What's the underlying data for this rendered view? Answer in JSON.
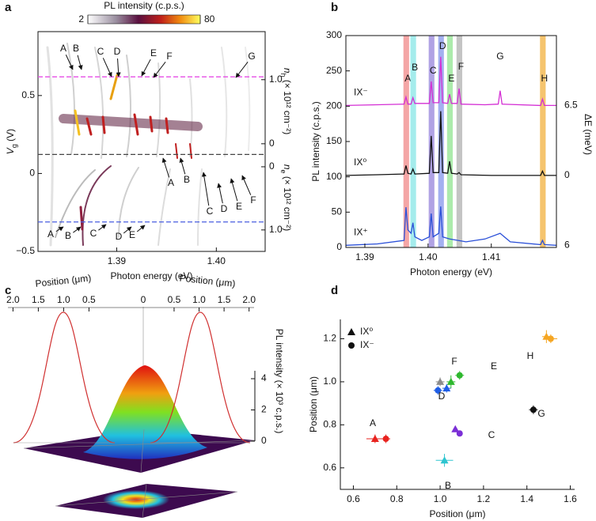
{
  "chart_data": [
    {
      "type": "heatmap",
      "label": "a",
      "colorbar": {
        "title": "PL intensity (c.p.s.)",
        "lim": [
          2,
          80
        ],
        "ticks": [
          2,
          80
        ]
      },
      "xlabel": "Photon energy (eV)",
      "xlim": [
        1.3821,
        1.4049
      ],
      "xticks": [
        1.39,
        {
          "value": 1.4,
          "label": "1.40"
        }
      ],
      "ylabel": [
        "V",
        "g",
        " (V)"
      ],
      "ylim": [
        -0.5,
        0.91
      ],
      "yticks": [
        {
          "value": -0.5,
          "label": "−0.5"
        },
        0,
        0.5
      ],
      "y2label": [
        "n",
        "h",
        " (× 10¹² cm⁻²)"
      ],
      "y2lim": [
        -1.68,
        1.75
      ],
      "y2ticks": [
        {
          "value": 1,
          "label": "1.0"
        },
        0
      ],
      "y3label": [
        "n",
        "e",
        " (× 10¹² cm⁻²)"
      ],
      "y3lim": [
        1.34,
        -2.14
      ],
      "y3ticks": [
        0,
        {
          "value": 1,
          "label": "1.0"
        }
      ],
      "hlines": [
        {
          "y": 0.62,
          "color": "#e64ce6"
        },
        {
          "y": 0.122,
          "color": "#444444"
        },
        {
          "y": -0.311,
          "color": "#4a5fe0"
        }
      ],
      "annotations": [
        "A",
        "B",
        "C",
        "D",
        "E",
        "F",
        "G",
        "A",
        "B",
        "C",
        "D",
        "E",
        "F",
        "A",
        "B",
        "C",
        "D",
        "E"
      ]
    },
    {
      "type": "line",
      "label": "b",
      "xlabel": "Photon energy (eV)",
      "ylabel": "PL intensity (c.p.s.)",
      "y2label": "ΔE (meV)",
      "xlim": [
        1.387,
        1.4203
      ],
      "xticks": [
        1.39,
        {
          "value": 1.4,
          "label": "1.40"
        },
        1.41
      ],
      "ylim": [
        0,
        300
      ],
      "yticks": [
        0,
        50,
        100,
        150,
        200,
        250,
        300
      ],
      "bands": [
        {
          "name": "A",
          "span": [
            1.3961,
            1.397
          ],
          "color": "#f4a6a6"
        },
        {
          "name": "B",
          "span": [
            1.3972,
            1.3981
          ],
          "color": "#a4ecec"
        },
        {
          "name": "C",
          "span": [
            1.4001,
            1.401
          ],
          "color": "#b0a2e4"
        },
        {
          "name": "D",
          "span": [
            1.4016,
            1.4025
          ],
          "color": "#a3b0f0"
        },
        {
          "name": "E",
          "span": [
            1.403,
            1.4039
          ],
          "color": "#acebac"
        },
        {
          "name": "F",
          "span": [
            1.4045,
            1.4054
          ],
          "color": "#c4c4c4"
        },
        {
          "name": "H",
          "span": [
            1.4177,
            1.4186
          ],
          "color": "#f5c46e"
        }
      ],
      "labels": [
        {
          "text": "G",
          "x": 1.4114
        }
      ],
      "series": [
        {
          "name": "IX⁻",
          "color": "#d42ed4",
          "delta_E": 6.5,
          "delta_color": "#111111",
          "x": [
            1.387,
            1.392,
            1.3962,
            1.3965,
            1.3968,
            1.3973,
            1.3976,
            1.3979,
            1.4002,
            1.4005,
            1.4008,
            1.4017,
            1.402,
            1.4023,
            1.4031,
            1.4034,
            1.4037,
            1.4046,
            1.4049,
            1.4052,
            1.409,
            1.4111,
            1.4114,
            1.4117,
            1.4178,
            1.4181,
            1.4184,
            1.4203
          ],
          "values": [
            201,
            202,
            203,
            213,
            203,
            203,
            212,
            204,
            204,
            235,
            205,
            205,
            270,
            205,
            204,
            217,
            204,
            204,
            225,
            203,
            202,
            203,
            222,
            203,
            201,
            210,
            201,
            201
          ]
        },
        {
          "name": "IX⁰",
          "color": "#111111",
          "delta_E": 0,
          "delta_color": "#111111",
          "x": [
            1.387,
            1.392,
            1.3962,
            1.3965,
            1.3968,
            1.3973,
            1.3976,
            1.3979,
            1.4002,
            1.4005,
            1.4008,
            1.4017,
            1.402,
            1.4023,
            1.4031,
            1.4034,
            1.4037,
            1.4046,
            1.4049,
            1.4052,
            1.41,
            1.4178,
            1.4181,
            1.4184,
            1.4203
          ],
          "values": [
            102,
            103,
            104,
            116,
            105,
            104,
            111,
            104,
            105,
            158,
            106,
            106,
            193,
            106,
            105,
            122,
            105,
            104,
            106,
            103,
            102,
            102,
            108,
            102,
            102
          ]
        },
        {
          "name": "IX⁺",
          "color": "#2a4fd8",
          "delta_E": 6,
          "delta_color": "#2a4fd8",
          "x": [
            1.387,
            1.392,
            1.3962,
            1.3965,
            1.3968,
            1.3973,
            1.3976,
            1.3979,
            1.399,
            1.4002,
            1.4005,
            1.4008,
            1.4017,
            1.402,
            1.4023,
            1.4034,
            1.406,
            1.409,
            1.4114,
            1.413,
            1.4178,
            1.4181,
            1.4184,
            1.4203
          ],
          "values": [
            3,
            5,
            10,
            57,
            25,
            20,
            35,
            15,
            10,
            15,
            48,
            15,
            20,
            58,
            15,
            12,
            8,
            12,
            20,
            8,
            4,
            10,
            4,
            3
          ]
        }
      ]
    },
    {
      "type": "surface3d",
      "label": "c",
      "xlabel_left": "Position (μm)",
      "xlabel_right": "Position (μm)",
      "xlim_left": [
        2.1,
        0.2
      ],
      "xticks_left": [
        {
          "value": 2,
          "label": "2.0"
        },
        1.5,
        {
          "value": 1,
          "label": "1.0"
        },
        0.5
      ],
      "origin_tick": 0,
      "xlim_right": [
        0.2,
        2.1
      ],
      "xticks_right": [
        0.5,
        {
          "value": 1,
          "label": "1.0"
        },
        1.5,
        {
          "value": 2,
          "label": "2.0"
        }
      ],
      "zlabel": "PL intensity (× 10³ c.p.s.)",
      "zlim": [
        0,
        4
      ],
      "zticks": [
        0,
        2,
        4
      ]
    },
    {
      "type": "scatter",
      "label": "d",
      "xlabel": "Position (μm)",
      "ylabel": "Position (μm)",
      "xlim": [
        0.54,
        1.62
      ],
      "xticks": [
        0.6,
        0.8,
        {
          "value": 1,
          "label": "1.0"
        },
        1.2,
        1.4,
        1.6
      ],
      "ylim": [
        0.5,
        1.29
      ],
      "yticks": [
        0.6,
        0.8,
        {
          "value": 1,
          "label": "1.0"
        },
        1.2
      ],
      "legend": "upper left",
      "series": [
        {
          "name": "IX⁰",
          "marker": "triangle",
          "x": [
            0.7,
            1.02,
            1.07,
            1.03,
            1.05,
            1.0,
            1.49
          ],
          "values": [
            0.735,
            0.635,
            0.78,
            0.97,
            1.0,
            1.0,
            1.21
          ],
          "xerr": [
            0.04,
            0.04,
            0.01,
            0.02,
            0.02,
            0.02,
            0.02
          ],
          "yerr": [
            0.02,
            0.03,
            0.01,
            0.02,
            0.03,
            0.02,
            0.03
          ],
          "colors": [
            "#e8231f",
            "#2ec5d0",
            "#7b2fd6",
            "#1f5ee6",
            "#2eb82e",
            "#8c8c8c",
            "#f5a623"
          ]
        },
        {
          "name": "IX⁻",
          "marker": "circle",
          "x": [
            0.75,
            1.09,
            0.99,
            1.09,
            1.43,
            1.51
          ],
          "values": [
            0.735,
            0.76,
            0.96,
            1.03,
            0.87,
            1.2
          ],
          "xerr": [
            0.02,
            0.01,
            0.02,
            0.02,
            0.02,
            0.03
          ],
          "yerr": [
            0.02,
            0.01,
            0.02,
            0.02,
            0.02,
            0.02
          ],
          "colors": [
            "#e8231f",
            "#7b2fd6",
            "#1f5ee6",
            "#2eb82e",
            "#111111",
            "#f5a623"
          ]
        }
      ],
      "annotations": [
        {
          "text": "A",
          "color": "#e8231f"
        },
        {
          "text": "B",
          "color": "#2ec5d0"
        },
        {
          "text": "C",
          "color": "#7b2fd6"
        },
        {
          "text": "D",
          "color": "#1f5ee6"
        },
        {
          "text": "E",
          "color": "#2eb82e"
        },
        {
          "text": "F",
          "color": "#8c8c8c"
        },
        {
          "text": "G",
          "color": "#111111"
        },
        {
          "text": "H",
          "color": "#f5a623"
        }
      ]
    }
  ]
}
